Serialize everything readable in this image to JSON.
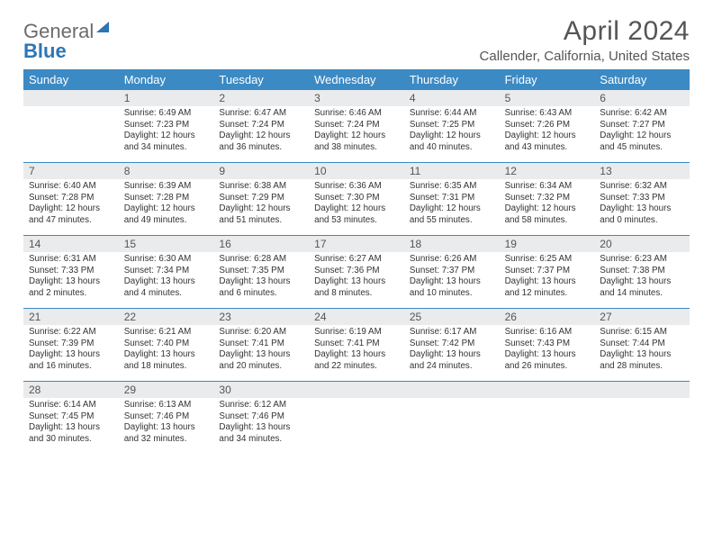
{
  "brand": {
    "part1": "General",
    "part2": "Blue"
  },
  "title": "April 2024",
  "location": "Callender, California, United States",
  "header_bg": "#3b8ac4",
  "band_bg": "#e9ebec",
  "dow": [
    "Sunday",
    "Monday",
    "Tuesday",
    "Wednesday",
    "Thursday",
    "Friday",
    "Saturday"
  ],
  "weeks": [
    [
      null,
      {
        "n": "1",
        "sr": "6:49 AM",
        "ss": "7:23 PM",
        "dl": "12 hours and 34 minutes."
      },
      {
        "n": "2",
        "sr": "6:47 AM",
        "ss": "7:24 PM",
        "dl": "12 hours and 36 minutes."
      },
      {
        "n": "3",
        "sr": "6:46 AM",
        "ss": "7:24 PM",
        "dl": "12 hours and 38 minutes."
      },
      {
        "n": "4",
        "sr": "6:44 AM",
        "ss": "7:25 PM",
        "dl": "12 hours and 40 minutes."
      },
      {
        "n": "5",
        "sr": "6:43 AM",
        "ss": "7:26 PM",
        "dl": "12 hours and 43 minutes."
      },
      {
        "n": "6",
        "sr": "6:42 AM",
        "ss": "7:27 PM",
        "dl": "12 hours and 45 minutes."
      }
    ],
    [
      {
        "n": "7",
        "sr": "6:40 AM",
        "ss": "7:28 PM",
        "dl": "12 hours and 47 minutes."
      },
      {
        "n": "8",
        "sr": "6:39 AM",
        "ss": "7:28 PM",
        "dl": "12 hours and 49 minutes."
      },
      {
        "n": "9",
        "sr": "6:38 AM",
        "ss": "7:29 PM",
        "dl": "12 hours and 51 minutes."
      },
      {
        "n": "10",
        "sr": "6:36 AM",
        "ss": "7:30 PM",
        "dl": "12 hours and 53 minutes."
      },
      {
        "n": "11",
        "sr": "6:35 AM",
        "ss": "7:31 PM",
        "dl": "12 hours and 55 minutes."
      },
      {
        "n": "12",
        "sr": "6:34 AM",
        "ss": "7:32 PM",
        "dl": "12 hours and 58 minutes."
      },
      {
        "n": "13",
        "sr": "6:32 AM",
        "ss": "7:33 PM",
        "dl": "13 hours and 0 minutes."
      }
    ],
    [
      {
        "n": "14",
        "sr": "6:31 AM",
        "ss": "7:33 PM",
        "dl": "13 hours and 2 minutes."
      },
      {
        "n": "15",
        "sr": "6:30 AM",
        "ss": "7:34 PM",
        "dl": "13 hours and 4 minutes."
      },
      {
        "n": "16",
        "sr": "6:28 AM",
        "ss": "7:35 PM",
        "dl": "13 hours and 6 minutes."
      },
      {
        "n": "17",
        "sr": "6:27 AM",
        "ss": "7:36 PM",
        "dl": "13 hours and 8 minutes."
      },
      {
        "n": "18",
        "sr": "6:26 AM",
        "ss": "7:37 PM",
        "dl": "13 hours and 10 minutes."
      },
      {
        "n": "19",
        "sr": "6:25 AM",
        "ss": "7:37 PM",
        "dl": "13 hours and 12 minutes."
      },
      {
        "n": "20",
        "sr": "6:23 AM",
        "ss": "7:38 PM",
        "dl": "13 hours and 14 minutes."
      }
    ],
    [
      {
        "n": "21",
        "sr": "6:22 AM",
        "ss": "7:39 PM",
        "dl": "13 hours and 16 minutes."
      },
      {
        "n": "22",
        "sr": "6:21 AM",
        "ss": "7:40 PM",
        "dl": "13 hours and 18 minutes."
      },
      {
        "n": "23",
        "sr": "6:20 AM",
        "ss": "7:41 PM",
        "dl": "13 hours and 20 minutes."
      },
      {
        "n": "24",
        "sr": "6:19 AM",
        "ss": "7:41 PM",
        "dl": "13 hours and 22 minutes."
      },
      {
        "n": "25",
        "sr": "6:17 AM",
        "ss": "7:42 PM",
        "dl": "13 hours and 24 minutes."
      },
      {
        "n": "26",
        "sr": "6:16 AM",
        "ss": "7:43 PM",
        "dl": "13 hours and 26 minutes."
      },
      {
        "n": "27",
        "sr": "6:15 AM",
        "ss": "7:44 PM",
        "dl": "13 hours and 28 minutes."
      }
    ],
    [
      {
        "n": "28",
        "sr": "6:14 AM",
        "ss": "7:45 PM",
        "dl": "13 hours and 30 minutes."
      },
      {
        "n": "29",
        "sr": "6:13 AM",
        "ss": "7:46 PM",
        "dl": "13 hours and 32 minutes."
      },
      {
        "n": "30",
        "sr": "6:12 AM",
        "ss": "7:46 PM",
        "dl": "13 hours and 34 minutes."
      },
      null,
      null,
      null,
      null
    ]
  ],
  "labels": {
    "sunrise": "Sunrise:",
    "sunset": "Sunset:",
    "daylight": "Daylight:"
  }
}
